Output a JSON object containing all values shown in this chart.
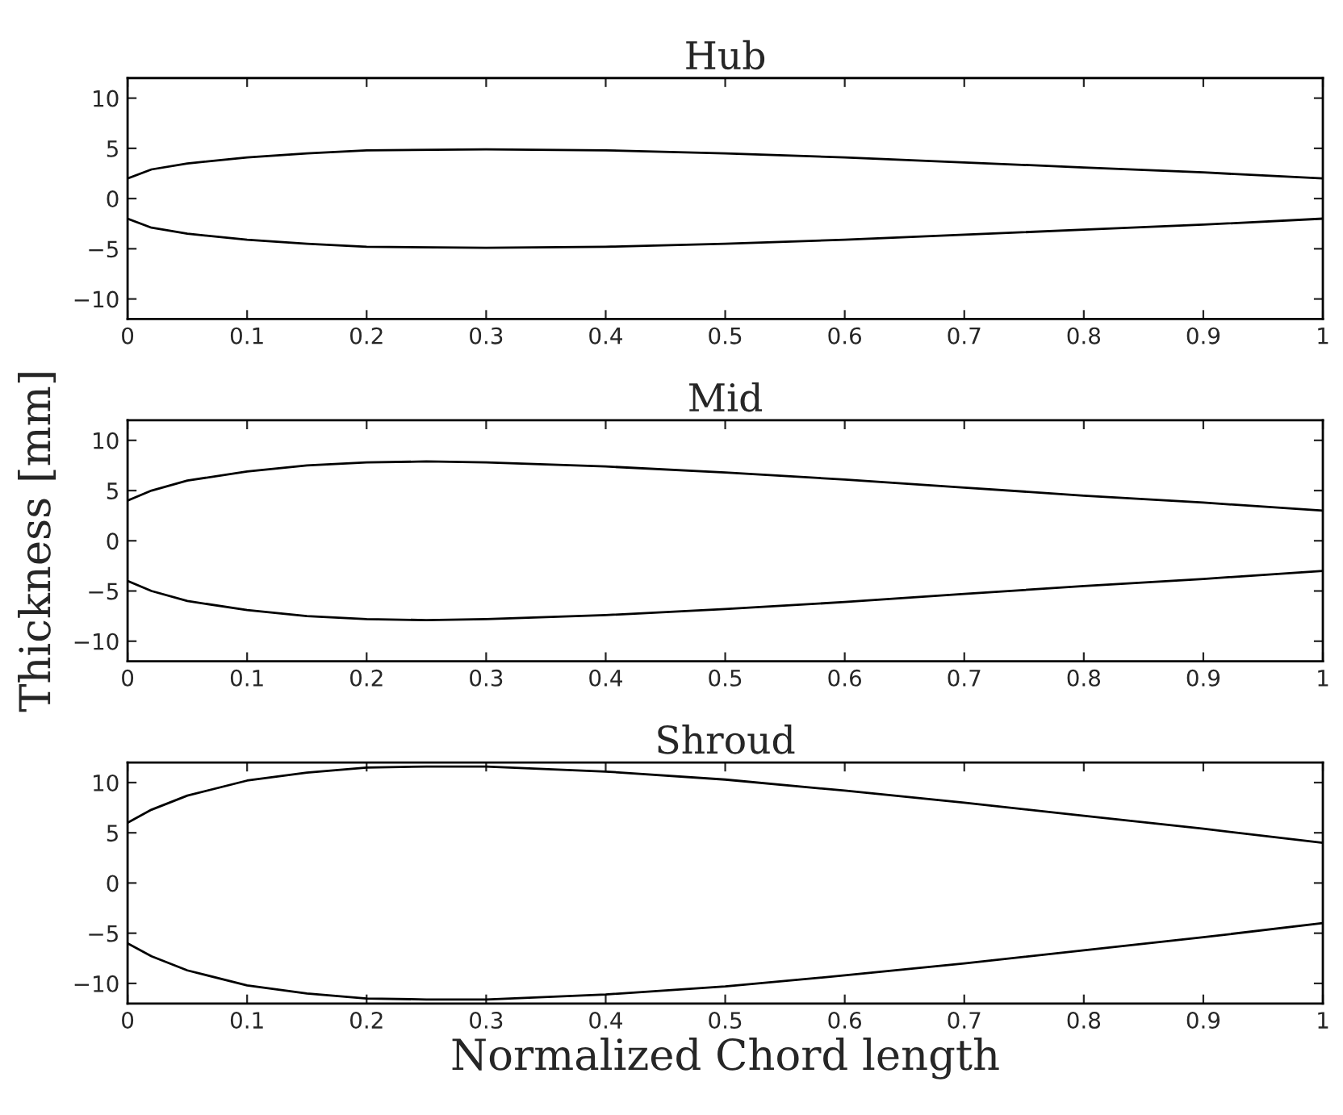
{
  "chart_data": [
    {
      "type": "line",
      "title": "Hub",
      "x": [
        0,
        0.02,
        0.05,
        0.1,
        0.15,
        0.2,
        0.3,
        0.4,
        0.5,
        0.6,
        0.7,
        0.8,
        0.9,
        1
      ],
      "xlim": [
        0,
        1
      ],
      "xticks": [
        0,
        0.1,
        0.2,
        0.3,
        0.4,
        0.5,
        0.6,
        0.7,
        0.8,
        0.9,
        1
      ],
      "ylim": [
        -12,
        12
      ],
      "yticks": [
        -10,
        -5,
        0,
        5,
        10
      ],
      "line_style": "solid",
      "series": [
        {
          "color": "#000000",
          "values": [
            2,
            2.9,
            3.5,
            4.1,
            4.5,
            4.8,
            4.9,
            4.8,
            4.5,
            4.1,
            3.6,
            3.1,
            2.6,
            2
          ]
        },
        {
          "color": "#000000",
          "values": [
            -2,
            -2.9,
            -3.5,
            -4.1,
            -4.5,
            -4.8,
            -4.9,
            -4.8,
            -4.5,
            -4.1,
            -3.6,
            -3.1,
            -2.6,
            -2
          ]
        }
      ]
    },
    {
      "type": "line",
      "title": "Mid",
      "ylabel": "Thickness [mm]",
      "x": [
        0,
        0.02,
        0.05,
        0.1,
        0.15,
        0.2,
        0.25,
        0.3,
        0.4,
        0.5,
        0.6,
        0.7,
        0.8,
        0.9,
        1
      ],
      "xlim": [
        0,
        1
      ],
      "xticks": [
        0,
        0.1,
        0.2,
        0.3,
        0.4,
        0.5,
        0.6,
        0.7,
        0.8,
        0.9,
        1
      ],
      "ylim": [
        -12,
        12
      ],
      "yticks": [
        -10,
        -5,
        0,
        5,
        10
      ],
      "line_style": "solid",
      "series": [
        {
          "color": "#000000",
          "values": [
            4,
            5,
            6,
            6.9,
            7.5,
            7.8,
            7.9,
            7.8,
            7.4,
            6.8,
            6.1,
            5.3,
            4.5,
            3.8,
            3
          ]
        },
        {
          "color": "#000000",
          "values": [
            -4,
            -5,
            -6,
            -6.9,
            -7.5,
            -7.8,
            -7.9,
            -7.8,
            -7.4,
            -6.8,
            -6.1,
            -5.3,
            -4.5,
            -3.8,
            -3
          ]
        }
      ]
    },
    {
      "type": "line",
      "title": "Shroud",
      "xlabel": "Normalized Chord length",
      "x": [
        0,
        0.02,
        0.05,
        0.1,
        0.15,
        0.2,
        0.25,
        0.3,
        0.4,
        0.5,
        0.6,
        0.7,
        0.8,
        0.9,
        1
      ],
      "xlim": [
        0,
        1
      ],
      "xticks": [
        0,
        0.1,
        0.2,
        0.3,
        0.4,
        0.5,
        0.6,
        0.7,
        0.8,
        0.9,
        1
      ],
      "ylim": [
        -12,
        12
      ],
      "yticks": [
        -10,
        -5,
        0,
        5,
        10
      ],
      "line_style": "solid",
      "series": [
        {
          "color": "#000000",
          "values": [
            6,
            7.3,
            8.7,
            10.2,
            11,
            11.5,
            11.6,
            11.6,
            11.1,
            10.3,
            9.2,
            8,
            6.7,
            5.4,
            4
          ]
        },
        {
          "color": "#000000",
          "values": [
            -6,
            -7.3,
            -8.7,
            -10.2,
            -11,
            -11.5,
            -11.6,
            -11.6,
            -11.1,
            -10.3,
            -9.2,
            -8,
            -6.7,
            -5.4,
            -4
          ]
        }
      ]
    }
  ]
}
